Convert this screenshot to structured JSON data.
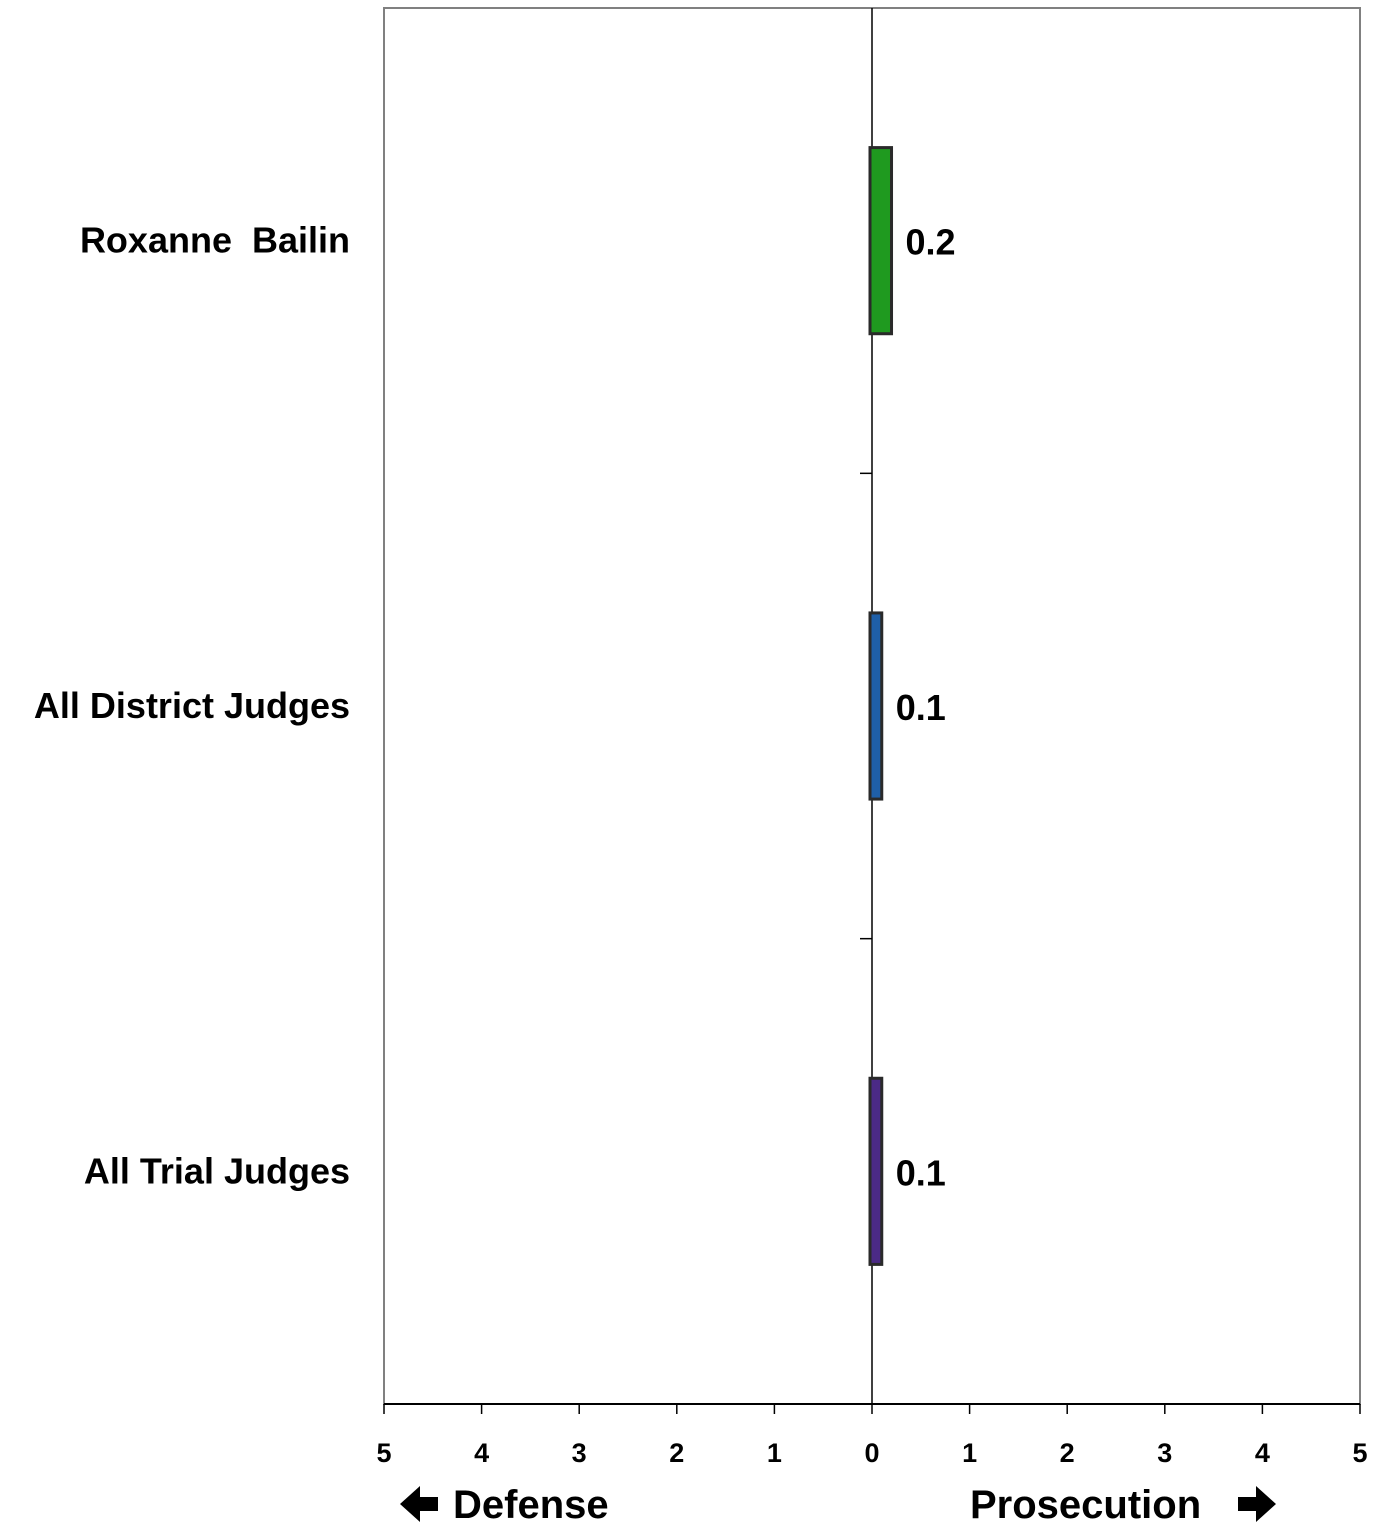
{
  "chart_data": {
    "type": "bar",
    "orientation": "horizontal",
    "title": "",
    "xlabel": "",
    "ylabel": "",
    "categories": [
      "Roxanne  Bailin",
      "All District Judges",
      "All Trial Judges"
    ],
    "values": [
      0.2,
      0.1,
      0.1
    ],
    "value_labels": [
      "0.2",
      "0.1",
      "0.1"
    ],
    "colors": [
      "#1f9a1f",
      "#1f5fa8",
      "#4b2a86"
    ],
    "xlim": [
      -5,
      5
    ],
    "x_ticks": [
      -5,
      -4,
      -3,
      -2,
      -1,
      0,
      1,
      2,
      3,
      4,
      5
    ],
    "x_tick_labels": [
      "5",
      "4",
      "3",
      "2",
      "1",
      "0",
      "1",
      "2",
      "3",
      "4",
      "5"
    ],
    "left_direction_label": "Defense",
    "right_direction_label": "Prosecution",
    "grid": false,
    "legend": "none"
  }
}
